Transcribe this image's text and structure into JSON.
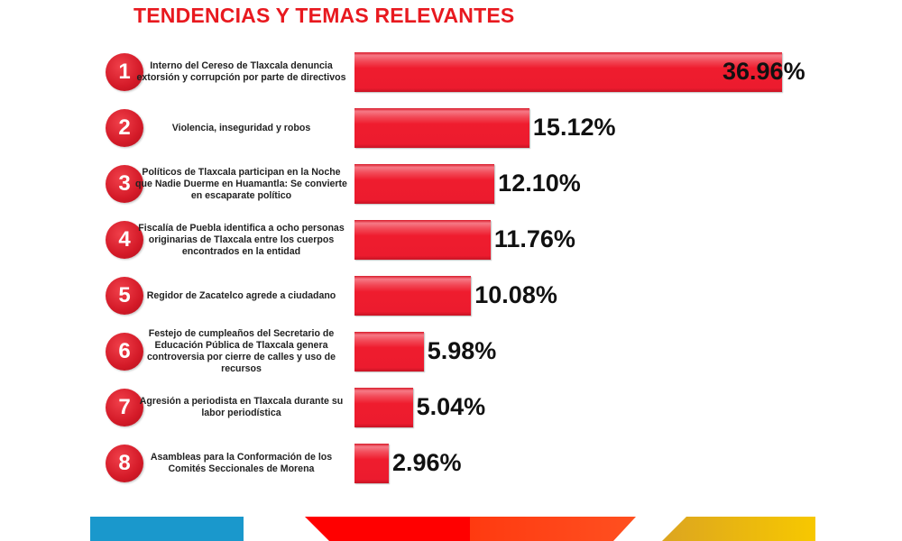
{
  "title": "TENDENCIAS Y TEMAS RELEVANTES",
  "chart_data": {
    "type": "bar",
    "orientation": "horizontal",
    "title": "TENDENCIAS Y TEMAS RELEVANTES",
    "categories": [
      "Interno del Cereso de Tlaxcala denuncia extorsión y corrupción por parte de directivos",
      "Violencia, inseguridad y robos",
      "Políticos de Tlaxcala participan en la Noche que Nadie Duerme en Huamantla: Se convierte en escaparate político",
      "Fiscalía de Puebla identifica a ocho personas originarias de Tlaxcala entre los cuerpos encontrados en la entidad",
      "Regidor de Zacatelco agrede a ciudadano",
      "Festejo de cumpleaños del Secretario de Educación Pública de Tlaxcala genera controversia por cierre de calles y uso de recursos",
      "Agresión a periodista en Tlaxcala durante su labor periodística",
      "Asambleas para la Conformación de los Comités Seccionales de Morena"
    ],
    "ranks": [
      "1",
      "2",
      "3",
      "4",
      "5",
      "6",
      "7",
      "8"
    ],
    "values": [
      36.96,
      15.12,
      12.1,
      11.76,
      10.08,
      5.98,
      5.04,
      2.96
    ],
    "value_labels": [
      "36.96%",
      "15.12%",
      "12.10%",
      "11.76%",
      "10.08%",
      "5.98%",
      "5.04%",
      "2.96%"
    ],
    "xlabel": "",
    "ylabel": "",
    "xlim": [
      0,
      36.96
    ],
    "grid": false
  },
  "colors": {
    "bar": "#ec1b2e",
    "title": "#e8191f",
    "blue": "#1a98cc",
    "red": "#ff0000",
    "orange": "#ff4a1a",
    "yellow": "#f5c400"
  }
}
